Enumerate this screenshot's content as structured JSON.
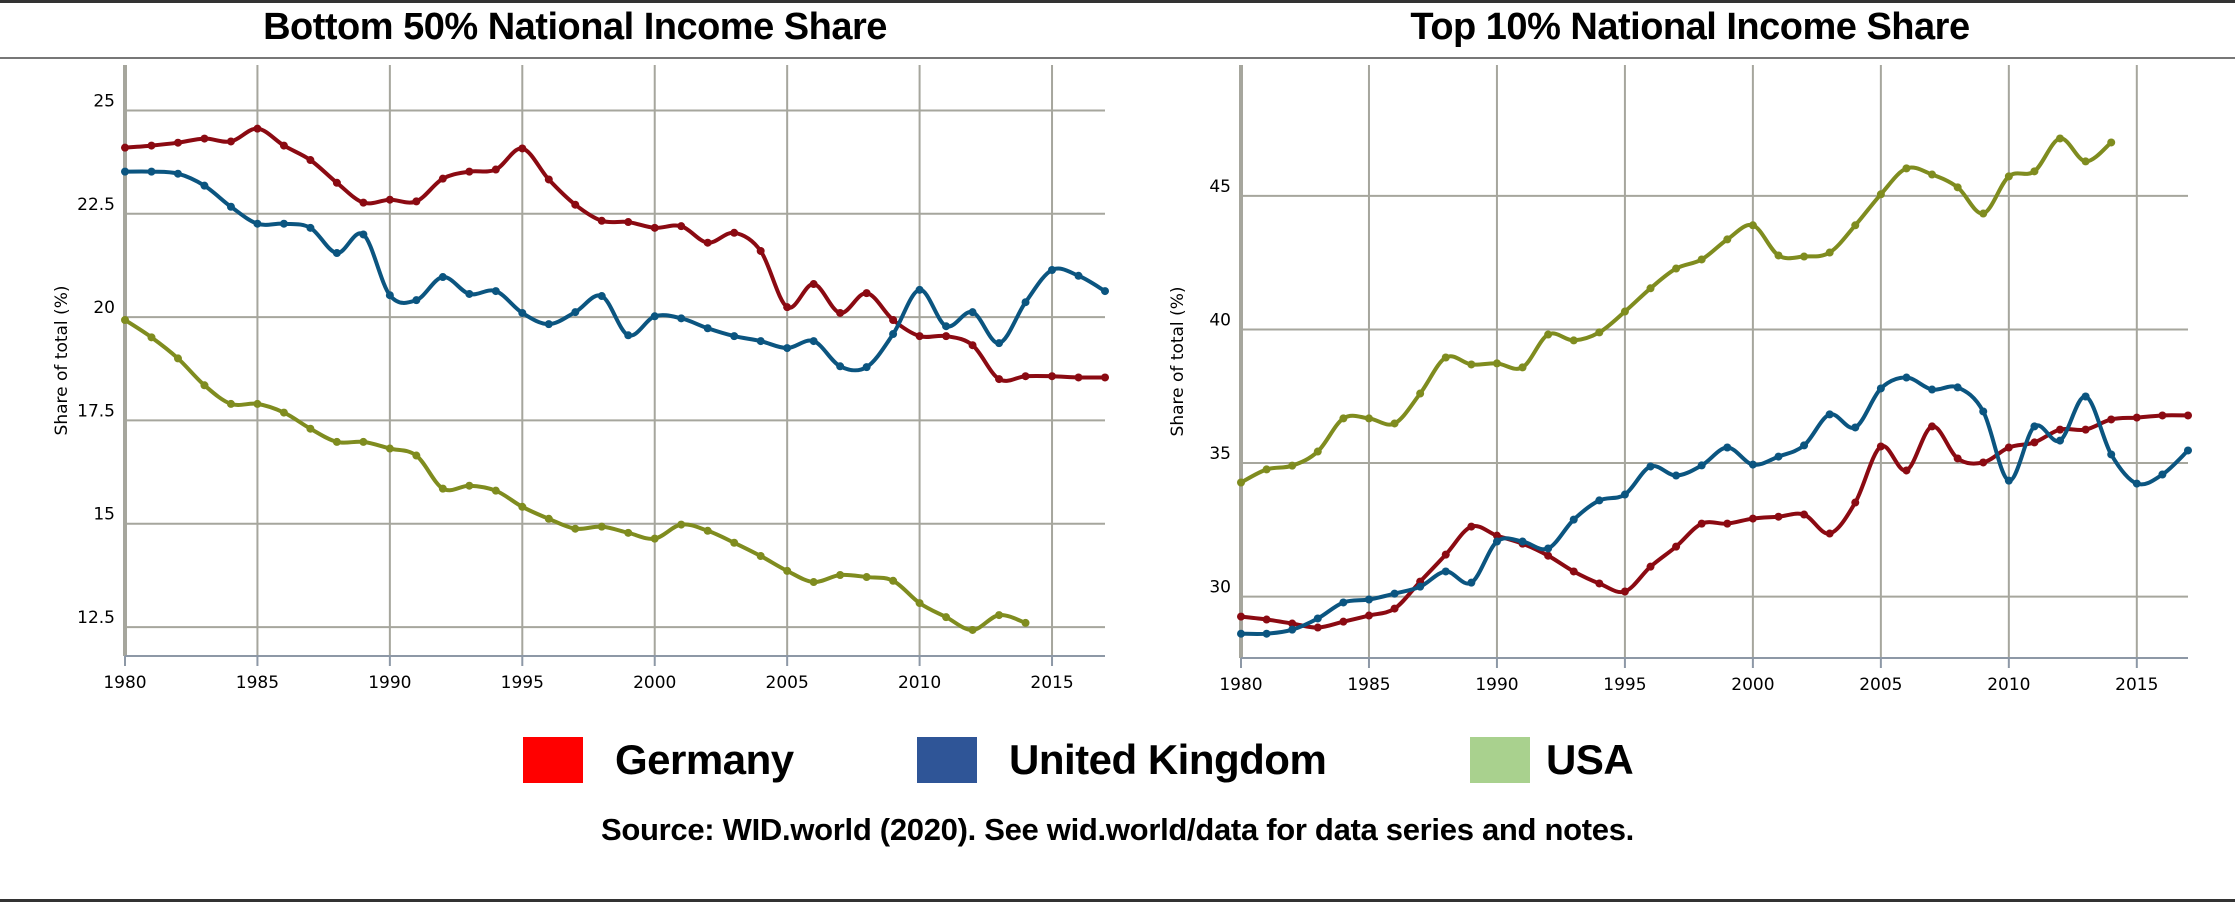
{
  "legend": {
    "items": [
      {
        "label": "Germany",
        "color": "#ff0000"
      },
      {
        "label": "United Kingdom",
        "color": "#2f5597"
      },
      {
        "label": "USA",
        "color": "#a9d18e"
      }
    ]
  },
  "source": "Source: WID.world (2020). See wid.world/data for data series and notes.",
  "chart_data": [
    {
      "type": "line",
      "title": "Bottom 50% National Income Share",
      "xlabel": "",
      "ylabel": "Share of total (%)",
      "xlim": [
        1980,
        2017
      ],
      "ylim": [
        11.8,
        26.1
      ],
      "xticks": [
        1980,
        1985,
        1990,
        1995,
        2000,
        2005,
        2010,
        2015
      ],
      "yticks": [
        12.5,
        15,
        17.5,
        20,
        22.5,
        25
      ],
      "ytick_labels": [
        "12.5",
        "15",
        "17.5",
        "20",
        "22.5",
        "25"
      ],
      "grid": true,
      "series": [
        {
          "name": "Germany",
          "color": "#8b0a12",
          "start_year": 1980,
          "values": [
            24.1,
            24.15,
            24.22,
            24.32,
            24.25,
            24.56,
            24.15,
            23.8,
            23.25,
            22.77,
            22.84,
            22.8,
            23.35,
            23.52,
            23.57,
            24.08,
            23.33,
            22.72,
            22.33,
            22.3,
            22.16,
            22.2,
            21.8,
            22.04,
            21.6,
            20.24,
            20.8,
            20.1,
            20.58,
            19.93,
            19.54,
            19.54,
            19.32,
            18.5,
            18.57,
            18.57,
            18.54,
            18.54
          ]
        },
        {
          "name": "United Kingdom",
          "color": "#0b5580",
          "start_year": 1980,
          "values": [
            23.52,
            23.52,
            23.47,
            23.18,
            22.67,
            22.26,
            22.26,
            22.16,
            21.55,
            22.0,
            20.53,
            20.41,
            20.97,
            20.56,
            20.63,
            20.1,
            19.83,
            20.12,
            20.51,
            19.56,
            20.02,
            19.97,
            19.73,
            19.54,
            19.42,
            19.25,
            19.42,
            18.81,
            18.79,
            19.59,
            20.66,
            19.78,
            20.12,
            19.37,
            20.36,
            21.14,
            21.0,
            20.63
          ]
        },
        {
          "name": "USA",
          "color": "#7f8c1f",
          "start_year": 1980,
          "values": [
            19.93,
            19.51,
            19.0,
            18.35,
            17.9,
            17.9,
            17.69,
            17.3,
            16.98,
            16.98,
            16.82,
            16.65,
            15.85,
            15.92,
            15.8,
            15.41,
            15.12,
            14.88,
            14.93,
            14.78,
            14.64,
            14.98,
            14.83,
            14.54,
            14.22,
            13.86,
            13.59,
            13.76,
            13.71,
            13.62,
            13.08,
            12.74,
            12.43,
            12.79,
            12.6
          ]
        }
      ]
    },
    {
      "type": "line",
      "title": "Top 10% National Income Share",
      "xlabel": "",
      "ylabel": "Share of total (%)",
      "xlim": [
        1980,
        2017
      ],
      "ylim": [
        27.7,
        49.9
      ],
      "xticks": [
        1980,
        1985,
        1990,
        1995,
        2000,
        2005,
        2010,
        2015
      ],
      "yticks": [
        30,
        35,
        40,
        45
      ],
      "ytick_labels": [
        "30",
        "35",
        "40",
        "45"
      ],
      "grid": true,
      "series": [
        {
          "name": "Germany",
          "color": "#8b0a12",
          "start_year": 1980,
          "values": [
            29.25,
            29.14,
            28.99,
            28.84,
            29.06,
            29.29,
            29.55,
            30.56,
            31.57,
            32.62,
            32.28,
            31.98,
            31.53,
            30.94,
            30.49,
            30.19,
            31.12,
            31.87,
            32.73,
            32.73,
            32.92,
            32.99,
            33.07,
            32.36,
            33.52,
            35.62,
            34.72,
            36.37,
            35.17,
            35.02,
            35.58,
            35.77,
            36.25,
            36.25,
            36.63,
            36.7,
            36.78,
            36.78
          ]
        },
        {
          "name": "United Kingdom",
          "color": "#0b5580",
          "start_year": 1980,
          "values": [
            28.61,
            28.61,
            28.76,
            29.18,
            29.78,
            29.89,
            30.11,
            30.37,
            30.94,
            30.52,
            32.06,
            32.06,
            31.8,
            32.88,
            33.6,
            33.82,
            34.87,
            34.53,
            34.91,
            35.58,
            34.94,
            35.24,
            35.66,
            36.82,
            36.33,
            37.79,
            38.2,
            37.75,
            37.83,
            36.93,
            34.34,
            36.37,
            35.84,
            37.49,
            35.32,
            34.23,
            34.57,
            35.47
          ]
        },
        {
          "name": "USA",
          "color": "#7f8c1f",
          "start_year": 1980,
          "values": [
            34.27,
            34.76,
            34.9,
            35.43,
            36.67,
            36.67,
            36.48,
            37.6,
            38.95,
            38.69,
            38.73,
            38.58,
            39.81,
            39.59,
            39.89,
            40.67,
            41.54,
            42.28,
            42.62,
            43.37,
            43.9,
            42.77,
            42.73,
            42.88,
            43.9,
            45.06,
            46.03,
            45.8,
            45.32,
            44.34,
            45.73,
            45.92,
            47.15,
            46.29,
            47.0
          ]
        }
      ]
    }
  ]
}
